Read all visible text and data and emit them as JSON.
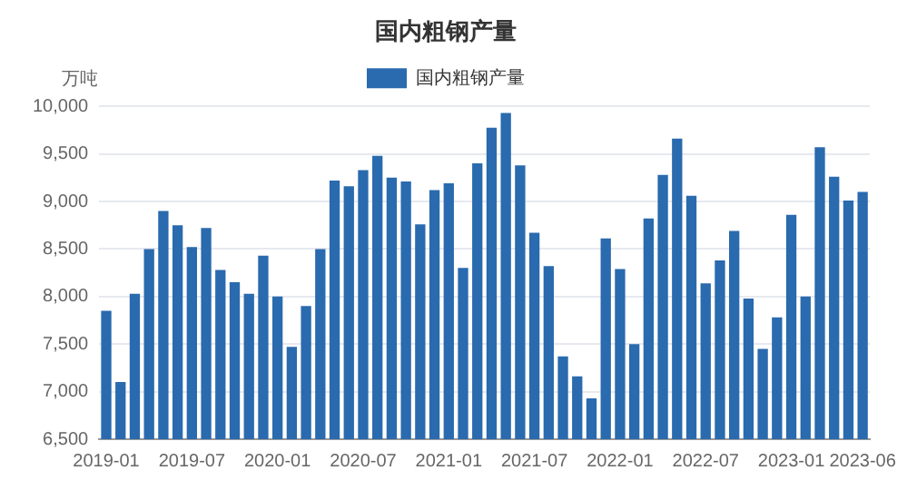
{
  "chart_data": {
    "type": "bar",
    "title": "国内粗钢产量",
    "ylabel": "万吨",
    "categories": [
      "2019-01",
      null,
      null,
      null,
      null,
      null,
      "2019-07",
      null,
      null,
      null,
      null,
      null,
      "2020-01",
      null,
      null,
      null,
      null,
      null,
      "2020-07",
      null,
      null,
      null,
      null,
      null,
      "2021-01",
      null,
      null,
      null,
      null,
      null,
      "2021-07",
      null,
      null,
      null,
      null,
      null,
      "2022-01",
      null,
      null,
      null,
      null,
      null,
      "2022-07",
      null,
      null,
      null,
      null,
      null,
      "2023-01",
      null,
      null,
      null,
      null,
      "2023-06"
    ],
    "series": [
      {
        "name": "国内粗钢产量",
        "color": "#2a6aae",
        "values": [
          7850,
          7100,
          8030,
          8500,
          8900,
          8750,
          8520,
          8720,
          8280,
          8150,
          8030,
          8430,
          8000,
          7470,
          7900,
          8500,
          9220,
          9160,
          9330,
          9480,
          9250,
          9210,
          8760,
          9120,
          9190,
          8300,
          9400,
          9775,
          9930,
          9380,
          8670,
          8320,
          7370,
          7160,
          6930,
          8610,
          8290,
          7500,
          8820,
          9280,
          9660,
          9060,
          8140,
          8380,
          8690,
          7980,
          7450,
          7780,
          8860,
          8000,
          9570,
          9260,
          9010,
          9100
        ]
      }
    ],
    "ylim": [
      6500,
      10000
    ],
    "yticks": [
      {
        "value": 6500,
        "label": "6,500"
      },
      {
        "value": 7000,
        "label": "7,000"
      },
      {
        "value": 7500,
        "label": "7,500"
      },
      {
        "value": 8000,
        "label": "8,000"
      },
      {
        "value": 8500,
        "label": "8,500"
      },
      {
        "value": 9000,
        "label": "9,000"
      },
      {
        "value": 9500,
        "label": "9,500"
      },
      {
        "value": 10000,
        "label": "10,000"
      }
    ],
    "grid": "y",
    "legend": "top"
  }
}
